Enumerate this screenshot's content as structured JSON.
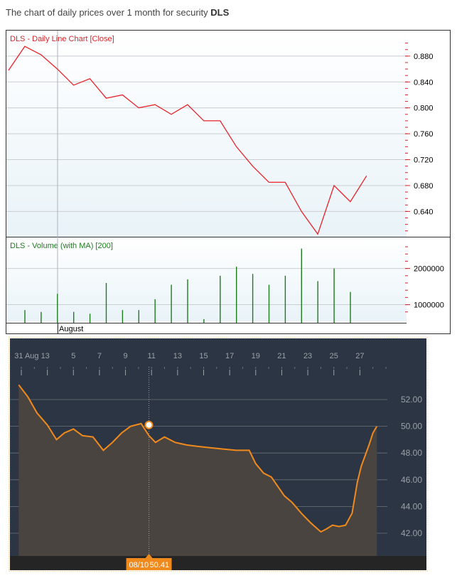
{
  "caption": {
    "prefix": "The chart of daily prices over 1 month for security ",
    "symbol": "DLS"
  },
  "chart_data": [
    {
      "type": "line",
      "title": "DLS - Daily Line Chart [Close]",
      "y_ticks": [
        "0.880",
        "0.840",
        "0.800",
        "0.760",
        "0.720",
        "0.680",
        "0.640"
      ],
      "ylim": [
        0.602,
        0.915
      ],
      "x_label_month": "August",
      "series": [
        {
          "values": [
            0.858,
            0.895,
            0.882,
            0.86,
            0.835,
            0.845,
            0.815,
            0.82,
            0.8,
            0.805,
            0.79,
            0.805,
            0.78,
            0.78,
            0.74,
            0.71,
            0.685,
            0.685,
            0.64,
            0.605,
            0.68,
            0.655,
            0.695
          ]
        }
      ],
      "grid": true,
      "line_color": "#e8232a"
    },
    {
      "type": "bar",
      "title": "DLS - Volume (with MA) [200]",
      "y_ticks": [
        "2000000",
        "1000000"
      ],
      "ylim": [
        500000,
        2700000
      ],
      "values": [
        850000,
        800000,
        1300000,
        800000,
        750000,
        1600000,
        850000,
        850000,
        1150000,
        1550000,
        1700000,
        600000,
        1800000,
        2050000,
        1850000,
        1550000,
        1800000,
        2550000,
        1650000,
        2000000,
        1350000
      ],
      "bar_color": "#1e7b1e"
    },
    {
      "type": "area",
      "x_ticks": [
        "31 Aug 1",
        "3",
        "5",
        "7",
        "9",
        "11",
        "13",
        "15",
        "17",
        "19",
        "21",
        "23",
        "25",
        "27"
      ],
      "y_ticks": [
        "52.00",
        "50.00",
        "48.00",
        "46.00",
        "44.00",
        "42.00"
      ],
      "ylim": [
        41.0,
        53.0
      ],
      "x_range": [
        0,
        28
      ],
      "series": [
        {
          "x": [
            -0.2,
            0.5,
            1.2,
            2.0,
            2.7,
            3.3,
            4.0,
            4.7,
            5.5,
            6.3,
            7.0,
            7.7,
            8.4,
            9.2,
            9.8,
            10.3,
            11.0,
            11.8,
            12.7,
            13.5,
            14.5,
            15.5,
            16.5,
            17.5,
            18.0,
            18.6,
            19.2,
            19.7,
            20.2,
            20.8,
            21.5,
            22.2,
            23.0,
            23.4,
            23.9,
            24.4,
            24.9,
            25.4,
            25.8,
            26.1,
            26.4,
            26.7,
            27.0,
            27.3
          ],
          "y": [
            53.1,
            52.2,
            51.0,
            50.1,
            49.0,
            49.5,
            49.8,
            49.3,
            49.2,
            48.2,
            48.8,
            49.5,
            50.0,
            50.2,
            49.3,
            48.8,
            49.2,
            48.8,
            48.6,
            48.5,
            48.4,
            48.3,
            48.2,
            48.2,
            47.2,
            46.5,
            46.2,
            45.5,
            44.8,
            44.3,
            43.5,
            42.8,
            42.1,
            42.3,
            42.6,
            42.5,
            42.6,
            43.5,
            45.8,
            47.0,
            47.8,
            48.6,
            49.5,
            50.0
          ]
        }
      ],
      "tooltip": {
        "date": "08/10",
        "value": "50.41"
      },
      "highlight": {
        "x": 9.8,
        "y": 50.1
      },
      "colors": {
        "bg": "#2c3543",
        "line": "#f08a1c",
        "fill": "#4a4440",
        "tooltip": "#f08a1c"
      }
    }
  ]
}
